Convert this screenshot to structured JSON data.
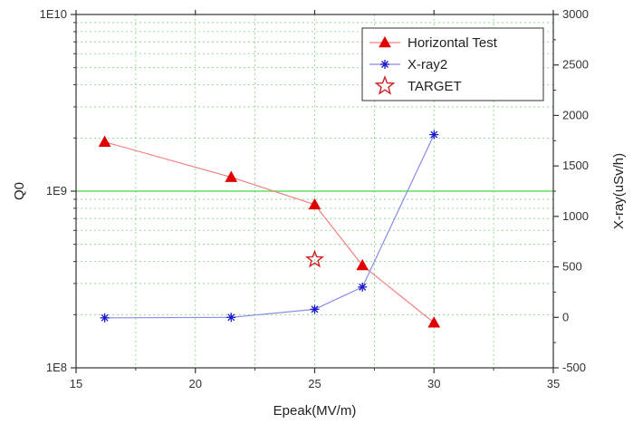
{
  "chart_data": {
    "type": "line",
    "xlabel": "Epeak(MV/m)",
    "ylabel_left": "Q0",
    "ylabel_right": "X-ray(uSv/h)",
    "xlim": [
      15,
      35
    ],
    "x_ticks": [
      15,
      20,
      25,
      30,
      35
    ],
    "x_tick_labels": [
      "15",
      "20",
      "25",
      "30",
      "35"
    ],
    "ylim_left": [
      100000000,
      10000000000
    ],
    "y_left_scale": "log",
    "y_left_ticks": [
      100000000,
      1000000000,
      10000000000
    ],
    "y_left_tick_labels": [
      "1E8",
      "1E9",
      "1E10"
    ],
    "ylim_right": [
      -500,
      3000
    ],
    "y_right_ticks": [
      -500,
      0,
      500,
      1000,
      1500,
      2000,
      2500,
      3000
    ],
    "y_right_tick_labels": [
      "-500",
      "0",
      "500",
      "1000",
      "1500",
      "2000",
      "2500",
      "3000"
    ],
    "grid": true,
    "legend_position": "top-right",
    "reference_line": {
      "axis": "left",
      "value": 1000000000,
      "color": "#5ee05e"
    },
    "series": [
      {
        "name": "Horizontal Test",
        "axis": "left",
        "marker": "triangle",
        "color": "#e00000",
        "line_color": "#f08080",
        "x": [
          16.2,
          21.5,
          25.0,
          27.0,
          30.0
        ],
        "values": [
          1900000000,
          1200000000,
          840000000,
          380000000,
          180000000
        ]
      },
      {
        "name": "X-ray2",
        "axis": "right",
        "marker": "asterisk",
        "color": "#1a1acc",
        "line_color": "#8a8ae6",
        "x": [
          16.2,
          21.5,
          25.0,
          27.0,
          30.0
        ],
        "values": [
          -5,
          0,
          80,
          300,
          1810
        ]
      },
      {
        "name": "TARGET",
        "axis": "left",
        "marker": "star",
        "color": "#cc2222",
        "line_color": "none",
        "x": [
          25.0
        ],
        "values": [
          410000000
        ]
      }
    ]
  }
}
